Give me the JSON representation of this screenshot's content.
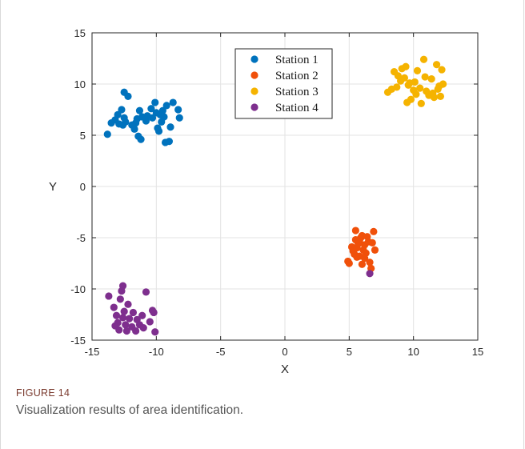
{
  "figure": {
    "label": "FIGURE 14",
    "caption": "Visualization results of area identification."
  },
  "colors": {
    "station1": "#0072BD",
    "station2": "#F0500A",
    "station3": "#F5B300",
    "station4": "#7E2F8E"
  },
  "chart_data": {
    "type": "scatter",
    "title": "",
    "xlabel": "X",
    "ylabel": "Y",
    "xlim": [
      -15,
      15
    ],
    "ylim": [
      -15,
      15
    ],
    "xticks": [
      -15,
      -10,
      -5,
      0,
      5,
      10,
      15
    ],
    "yticks": [
      15,
      10,
      5,
      0,
      -5,
      -10,
      -15
    ],
    "grid": true,
    "legend_position": "top-center",
    "series": [
      {
        "name": "Station 1",
        "color": "#0072BD",
        "points": [
          [
            -13.8,
            5.1
          ],
          [
            -13.5,
            6.2
          ],
          [
            -13.2,
            6.5
          ],
          [
            -13.0,
            7.0
          ],
          [
            -12.9,
            6.1
          ],
          [
            -12.7,
            7.5
          ],
          [
            -12.6,
            6.0
          ],
          [
            -12.5,
            6.7
          ],
          [
            -12.4,
            6.3
          ],
          [
            -12.5,
            9.2
          ],
          [
            -12.2,
            8.8
          ],
          [
            -11.9,
            6.0
          ],
          [
            -11.7,
            5.6
          ],
          [
            -11.6,
            6.2
          ],
          [
            -11.5,
            6.6
          ],
          [
            -11.4,
            4.9
          ],
          [
            -11.3,
            7.4
          ],
          [
            -11.2,
            4.6
          ],
          [
            -11.1,
            6.8
          ],
          [
            -10.8,
            6.4
          ],
          [
            -10.7,
            6.9
          ],
          [
            -10.4,
            7.6
          ],
          [
            -10.3,
            6.7
          ],
          [
            -10.1,
            8.2
          ],
          [
            -10.0,
            7.2
          ],
          [
            -9.9,
            5.7
          ],
          [
            -9.8,
            5.4
          ],
          [
            -9.6,
            6.3
          ],
          [
            -9.5,
            7.4
          ],
          [
            -9.4,
            6.8
          ],
          [
            -9.3,
            4.3
          ],
          [
            -9.2,
            7.9
          ],
          [
            -9.0,
            4.4
          ],
          [
            -8.9,
            5.8
          ],
          [
            -8.7,
            8.2
          ],
          [
            -8.3,
            7.5
          ],
          [
            -8.2,
            6.7
          ],
          [
            -9.7,
            7.0
          ]
        ]
      },
      {
        "name": "Station 2",
        "color": "#F0500A",
        "points": [
          [
            4.9,
            -7.3
          ],
          [
            5.0,
            -7.5
          ],
          [
            5.2,
            -5.9
          ],
          [
            5.3,
            -6.3
          ],
          [
            5.4,
            -6.6
          ],
          [
            5.5,
            -5.2
          ],
          [
            5.5,
            -4.3
          ],
          [
            5.6,
            -6.0
          ],
          [
            5.7,
            -5.6
          ],
          [
            5.8,
            -6.8
          ],
          [
            5.9,
            -5.0
          ],
          [
            6.0,
            -4.8
          ],
          [
            6.0,
            -7.6
          ],
          [
            6.1,
            -6.2
          ],
          [
            6.2,
            -5.7
          ],
          [
            6.3,
            -6.5
          ],
          [
            6.4,
            -4.9
          ],
          [
            6.5,
            -5.4
          ],
          [
            6.6,
            -7.4
          ],
          [
            6.7,
            -8.0
          ],
          [
            6.8,
            -5.5
          ],
          [
            6.9,
            -4.4
          ],
          [
            7.0,
            -6.2
          ],
          [
            5.8,
            -5.3
          ],
          [
            6.2,
            -7.0
          ],
          [
            5.6,
            -6.9
          ]
        ]
      },
      {
        "name": "Station 3",
        "color": "#F5B300",
        "points": [
          [
            8.0,
            9.2
          ],
          [
            8.3,
            9.5
          ],
          [
            8.5,
            11.2
          ],
          [
            8.7,
            9.7
          ],
          [
            8.8,
            10.8
          ],
          [
            9.0,
            10.3
          ],
          [
            9.1,
            11.5
          ],
          [
            9.3,
            10.6
          ],
          [
            9.4,
            11.7
          ],
          [
            9.5,
            8.2
          ],
          [
            9.6,
            9.9
          ],
          [
            9.7,
            10.1
          ],
          [
            9.8,
            8.5
          ],
          [
            10.0,
            9.4
          ],
          [
            10.1,
            10.2
          ],
          [
            10.2,
            9.0
          ],
          [
            10.3,
            11.3
          ],
          [
            10.5,
            9.6
          ],
          [
            10.6,
            8.1
          ],
          [
            10.8,
            12.4
          ],
          [
            10.9,
            10.7
          ],
          [
            11.0,
            9.3
          ],
          [
            11.2,
            8.9
          ],
          [
            11.4,
            10.5
          ],
          [
            11.5,
            9.1
          ],
          [
            11.6,
            8.7
          ],
          [
            11.8,
            11.9
          ],
          [
            11.9,
            9.5
          ],
          [
            12.0,
            9.8
          ],
          [
            12.1,
            8.8
          ],
          [
            12.2,
            11.4
          ],
          [
            12.3,
            10.0
          ]
        ]
      },
      {
        "name": "Station 4",
        "color": "#7E2F8E",
        "points": [
          [
            6.6,
            -8.5
          ],
          [
            -13.7,
            -10.7
          ],
          [
            -13.3,
            -11.8
          ],
          [
            -13.1,
            -12.6
          ],
          [
            -13.0,
            -13.3
          ],
          [
            -12.9,
            -14.0
          ],
          [
            -12.8,
            -11.0
          ],
          [
            -12.7,
            -10.2
          ],
          [
            -12.6,
            -9.7
          ],
          [
            -12.5,
            -12.2
          ],
          [
            -12.4,
            -13.5
          ],
          [
            -12.3,
            -14.1
          ],
          [
            -12.2,
            -11.5
          ],
          [
            -12.1,
            -12.9
          ],
          [
            -11.9,
            -13.7
          ],
          [
            -11.8,
            -12.3
          ],
          [
            -11.6,
            -14.1
          ],
          [
            -11.5,
            -13.0
          ],
          [
            -11.3,
            -13.5
          ],
          [
            -11.1,
            -12.6
          ],
          [
            -11.0,
            -13.8
          ],
          [
            -10.8,
            -10.3
          ],
          [
            -10.5,
            -13.2
          ],
          [
            -10.2,
            -12.3
          ],
          [
            -10.1,
            -14.2
          ],
          [
            -10.3,
            -12.1
          ],
          [
            -12.6,
            -12.8
          ],
          [
            -13.2,
            -13.6
          ]
        ]
      }
    ]
  }
}
